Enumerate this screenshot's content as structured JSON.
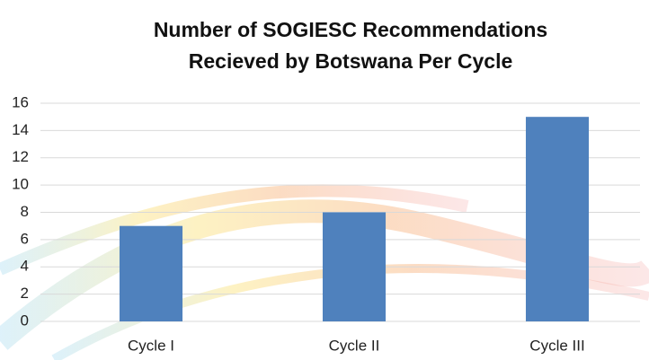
{
  "chart_data": {
    "type": "bar",
    "title": [
      "Number of SOGIESC Recommendations",
      "Recieved by Botswana Per Cycle"
    ],
    "categories": [
      "Cycle I",
      "Cycle II",
      "Cycle III"
    ],
    "values": [
      7,
      8,
      15
    ],
    "color": "#4f81bd",
    "ylim": [
      0,
      16
    ],
    "yticks": [
      0,
      2,
      4,
      6,
      8,
      10,
      12,
      14,
      16
    ],
    "grid": true
  }
}
